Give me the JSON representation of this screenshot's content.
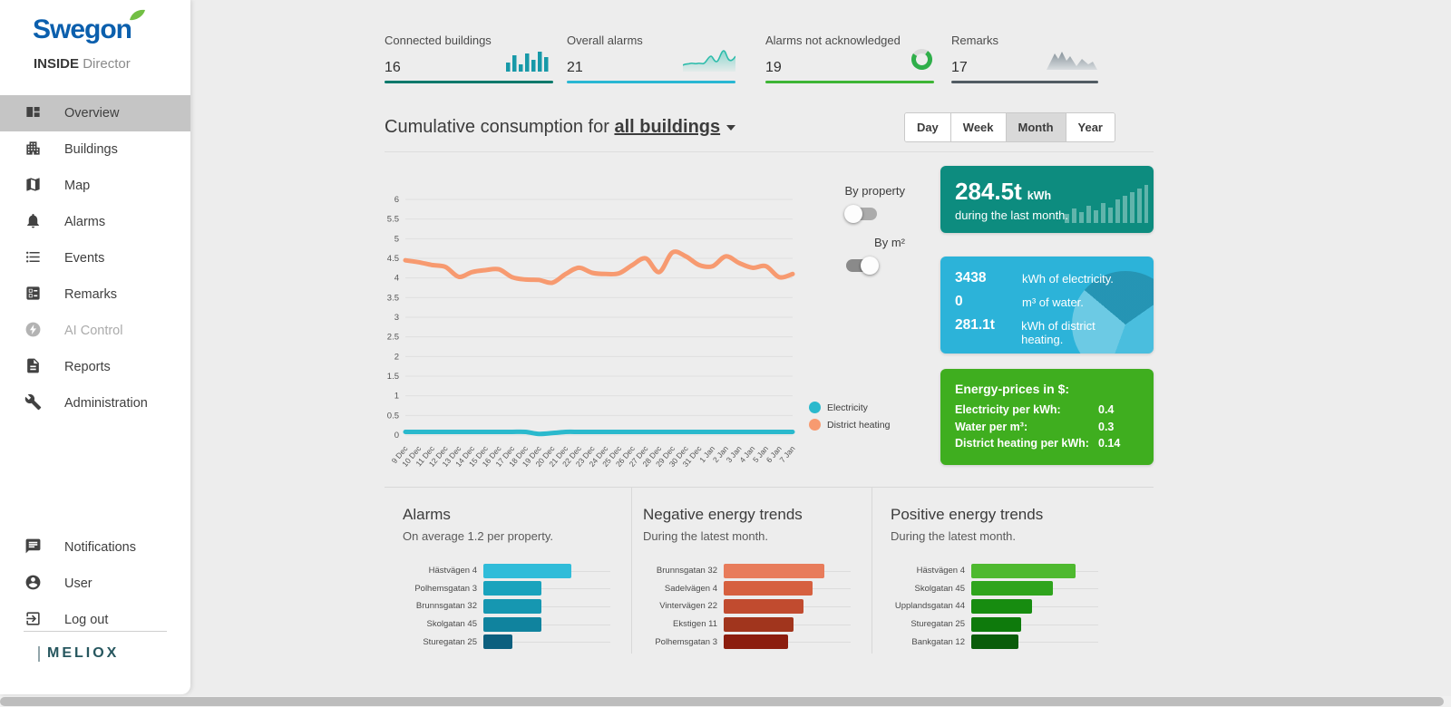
{
  "sidebar": {
    "logo": "Swegon",
    "product_bold": "INSIDE",
    "product_regular": "Director",
    "items": [
      {
        "label": "Overview",
        "icon": "overview-icon",
        "active": true,
        "disabled": false
      },
      {
        "label": "Buildings",
        "icon": "buildings-icon",
        "active": false,
        "disabled": false
      },
      {
        "label": "Map",
        "icon": "map-icon",
        "active": false,
        "disabled": false
      },
      {
        "label": "Alarms",
        "icon": "bell-icon",
        "active": false,
        "disabled": false
      },
      {
        "label": "Events",
        "icon": "list-icon",
        "active": false,
        "disabled": false
      },
      {
        "label": "Remarks",
        "icon": "ballot-icon",
        "active": false,
        "disabled": false
      },
      {
        "label": "AI Control",
        "icon": "ai-bolt-icon",
        "active": false,
        "disabled": true
      },
      {
        "label": "Reports",
        "icon": "document-icon",
        "active": false,
        "disabled": false
      },
      {
        "label": "Administration",
        "icon": "wrench-icon",
        "active": false,
        "disabled": false
      }
    ],
    "footer_items": [
      {
        "label": "Notifications",
        "icon": "notifications-icon"
      },
      {
        "label": "User",
        "icon": "user-icon"
      },
      {
        "label": "Log out",
        "icon": "logout-icon"
      }
    ],
    "brand_footer": "MELIOX"
  },
  "stats": [
    {
      "label": "Connected buildings",
      "value": "16",
      "icon": "bar-chart-icon",
      "accent": "#00796b"
    },
    {
      "label": "Overall alarms",
      "value": "21",
      "icon": "sparkline-icon",
      "accent": "#29b7d3"
    },
    {
      "label": "Alarms not acknowledged",
      "value": "19",
      "icon": "donut-icon",
      "accent": "#3eb535"
    },
    {
      "label": "Remarks",
      "value": "17",
      "icon": "mountain-icon",
      "accent": "#515c63"
    }
  ],
  "consumption_header": {
    "title_prefix": "Cumulative consumption for",
    "selection": "all buildings",
    "range_buttons": [
      "Day",
      "Week",
      "Month",
      "Year"
    ],
    "selected_range": "Month"
  },
  "toggles": [
    {
      "label": "By property",
      "on": false
    },
    {
      "label": "By m²",
      "on": true
    }
  ],
  "legend": [
    {
      "label": "Electricity",
      "color": "#2ab9cd"
    },
    {
      "label": "District heating",
      "color": "#f79a70"
    }
  ],
  "summary_cards": {
    "month_total": {
      "value": "284.5t",
      "unit": "kWh",
      "caption": "during the last month."
    },
    "breakdown": [
      {
        "value": "3438",
        "label": "kWh of electricity."
      },
      {
        "value": "0",
        "label": "m³ of water."
      },
      {
        "value": "281.1t",
        "label": "kWh of district heating."
      }
    ],
    "prices": {
      "title": "Energy-prices in $:",
      "rows": [
        {
          "label": "Electricity per kWh:",
          "value": "0.4"
        },
        {
          "label": "Water per m³:",
          "value": "0.3"
        },
        {
          "label": "District heating per kWh:",
          "value": "0.14"
        }
      ]
    }
  },
  "chart_data": [
    {
      "type": "line",
      "title": "Cumulative consumption for all buildings",
      "x": [
        "9 Dec",
        "10 Dec",
        "11 Dec",
        "12 Dec",
        "13 Dec",
        "14 Dec",
        "15 Dec",
        "16 Dec",
        "17 Dec",
        "18 Dec",
        "19 Dec",
        "20 Dec",
        "21 Dec",
        "22 Dec",
        "23 Dec",
        "24 Dec",
        "25 Dec",
        "26 Dec",
        "27 Dec",
        "28 Dec",
        "29 Dec",
        "30 Dec",
        "31 Dec",
        "1 Jan",
        "2 Jan",
        "3 Jan",
        "4 Jan",
        "5 Jan",
        "6 Jan",
        "7 Jan"
      ],
      "ylim": [
        0,
        6
      ],
      "ytick_step": 0.5,
      "grid": true,
      "legend_position": "right",
      "series": [
        {
          "name": "Electricity",
          "color": "#2ab9cd",
          "values": [
            0.08,
            0.08,
            0.08,
            0.08,
            0.08,
            0.08,
            0.08,
            0.08,
            0.08,
            0.08,
            0.03,
            0.05,
            0.08,
            0.08,
            0.08,
            0.08,
            0.08,
            0.08,
            0.08,
            0.08,
            0.08,
            0.08,
            0.08,
            0.08,
            0.08,
            0.08,
            0.08,
            0.08,
            0.08,
            0.08
          ]
        },
        {
          "name": "District heating",
          "color": "#f79a70",
          "values": [
            4.45,
            4.4,
            4.33,
            4.28,
            4.03,
            4.15,
            4.2,
            4.22,
            4.02,
            3.96,
            3.95,
            3.88,
            4.1,
            4.26,
            4.13,
            4.1,
            4.12,
            4.33,
            4.5,
            4.15,
            4.65,
            4.55,
            4.33,
            4.3,
            4.55,
            4.38,
            4.26,
            4.3,
            4.02,
            4.1
          ]
        }
      ]
    },
    {
      "type": "bar",
      "orientation": "horizontal",
      "title": "Alarms",
      "subtitle": "On average 1.2 per property.",
      "categories": [
        "Hästvägen 4",
        "Polhemsgatan 3",
        "Brunnsgatan 32",
        "Skolgatan 45",
        "Sturegatan 25"
      ],
      "values": [
        3,
        2,
        2,
        2,
        1
      ],
      "xlim": [
        0,
        4.35
      ],
      "colors": [
        "#30bcd9",
        "#1aa3bd",
        "#1697b1",
        "#10839e",
        "#0c5f7e"
      ]
    },
    {
      "type": "bar",
      "orientation": "horizontal",
      "title": "Negative energy trends",
      "subtitle": "During the latest month.",
      "categories": [
        "Brunnsgatan 32",
        "Sadelvägen 4",
        "Vintervägen 22",
        "Ekstigen 11",
        "Polhemsgatan 3"
      ],
      "values": [
        7.9,
        7.0,
        6.3,
        5.5,
        5.1
      ],
      "xlim": [
        0,
        10
      ],
      "colors": [
        "#e87c5b",
        "#d6603f",
        "#c14b2f",
        "#a1351d",
        "#8c1d0e"
      ]
    },
    {
      "type": "bar",
      "orientation": "horizontal",
      "title": "Positive energy trends",
      "subtitle": "During the latest month.",
      "categories": [
        "Hästvägen 4",
        "Skolgatan 45",
        "Upplandsgatan 44",
        "Sturegatan 25",
        "Bankgatan 12"
      ],
      "values": [
        8.2,
        6.4,
        4.8,
        3.9,
        3.7
      ],
      "xlim": [
        0,
        10
      ],
      "colors": [
        "#4eb92f",
        "#2fa41d",
        "#178c10",
        "#0e7a0c",
        "#0a5c0a"
      ]
    }
  ]
}
